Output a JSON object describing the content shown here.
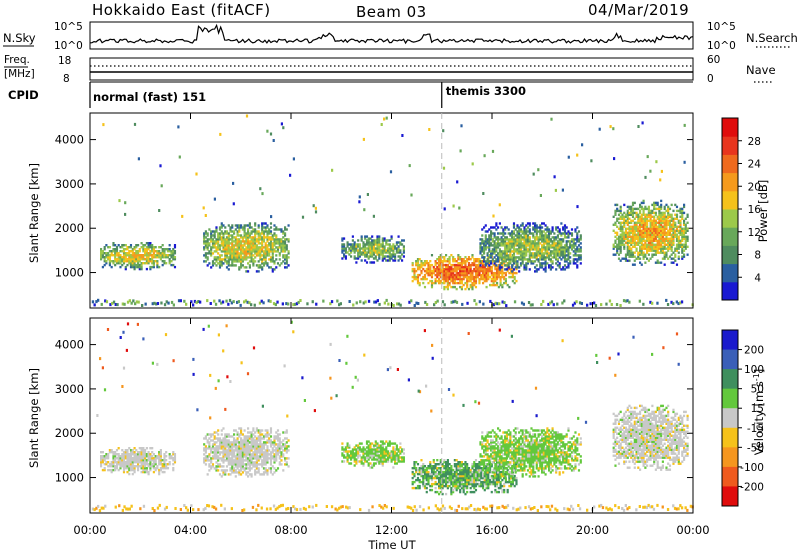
{
  "header": {
    "station": "Hokkaido East (fitACF)",
    "beam": "Beam 03",
    "date": "04/Mar/2019"
  },
  "noise_panel": {
    "left_label": "N.Sky",
    "left_ticks": [
      "10^5",
      "10^0"
    ],
    "right_ticks": [
      "10^5",
      "10^0"
    ],
    "right_label": "N.Search"
  },
  "freq_panel": {
    "left_label_1": "Freq.",
    "left_label_2": "[MHz]",
    "left_ticks": [
      "18",
      "8"
    ],
    "right_ticks": [
      "60",
      "0"
    ],
    "right_label": "Nave"
  },
  "cpid_panel": {
    "label": "CPID",
    "modes": [
      {
        "name": "normal (fast) 151",
        "start_hour": 0
      },
      {
        "name": "themis 3300",
        "start_hour": 14
      }
    ]
  },
  "chart_data": [
    {
      "type": "heatmap",
      "panel": "power",
      "ylabel": "Slant Range [km]",
      "yticks": [
        "1000",
        "2000",
        "3000",
        "4000"
      ],
      "ylim": [
        200,
        4600
      ],
      "xlim": [
        0,
        24
      ],
      "colorbar": {
        "label": "Power [dB]",
        "ticks": [
          "4",
          "8",
          "12",
          "16",
          "20",
          "24",
          "28"
        ],
        "range": [
          0,
          32
        ],
        "colors": [
          "#1919d2",
          "#2a5fa0",
          "#4f8c5f",
          "#68a85a",
          "#9cc94a",
          "#f5c21b",
          "#f59a1d",
          "#ef6a1e",
          "#e8351e",
          "#e00c0c"
        ]
      },
      "echo_regions": [
        {
          "t": [
            0.4,
            3.4
          ],
          "r": [
            1050,
            1650
          ],
          "level": "medium-high"
        },
        {
          "t": [
            4.5,
            7.9
          ],
          "r": [
            1000,
            2100
          ],
          "level": "medium-high"
        },
        {
          "t": [
            10.0,
            12.5
          ],
          "r": [
            1200,
            1800
          ],
          "level": "medium"
        },
        {
          "t": [
            12.8,
            17.0
          ],
          "r": [
            600,
            1400
          ],
          "level": "very high"
        },
        {
          "t": [
            15.5,
            19.5
          ],
          "r": [
            1000,
            2100
          ],
          "level": "medium"
        },
        {
          "t": [
            20.8,
            23.8
          ],
          "r": [
            1150,
            2600
          ],
          "level": "high"
        }
      ]
    },
    {
      "type": "heatmap",
      "panel": "velocity",
      "ylabel": "Slant Range [km]",
      "yticks": [
        "1000",
        "2000",
        "3000",
        "4000"
      ],
      "ylim": [
        200,
        4600
      ],
      "xlim": [
        0,
        24
      ],
      "xticks": [
        "00:00",
        "04:00",
        "08:00",
        "12:00",
        "16:00",
        "20:00",
        "00:00"
      ],
      "xlabel": "Time UT",
      "colorbar": {
        "label": "Velocity [m s^-1]",
        "ticks": [
          "200",
          "100",
          "50",
          "15",
          "-15",
          "-50",
          "-100",
          "-200"
        ],
        "colors": [
          "#1a1acc",
          "#3a5fb8",
          "#3f8f5e",
          "#63c83c",
          "#c8c8c8",
          "#f5c21b",
          "#f5961f",
          "#ef5a1e",
          "#e00c0c"
        ]
      },
      "echo_regions": [
        {
          "t": [
            0.4,
            3.4
          ],
          "r": [
            1050,
            1650
          ],
          "velocity": "near zero"
        },
        {
          "t": [
            4.5,
            7.9
          ],
          "r": [
            1000,
            2100
          ],
          "velocity": "near zero"
        },
        {
          "t": [
            10.0,
            12.5
          ],
          "r": [
            1200,
            1800
          ],
          "velocity": "positive 15-50"
        },
        {
          "t": [
            12.8,
            17.0
          ],
          "r": [
            600,
            1400
          ],
          "velocity": "positive 50-100"
        },
        {
          "t": [
            15.5,
            19.5
          ],
          "r": [
            1000,
            2100
          ],
          "velocity": "positive 15-50"
        },
        {
          "t": [
            20.8,
            23.8
          ],
          "r": [
            1150,
            2600
          ],
          "velocity": "near zero"
        }
      ]
    }
  ]
}
